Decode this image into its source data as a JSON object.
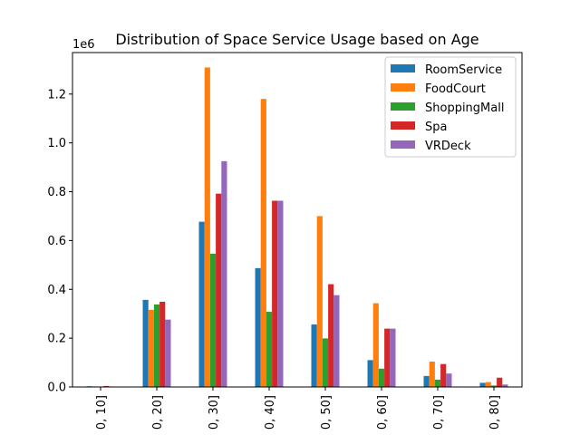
{
  "chart_data": {
    "type": "bar",
    "title": "Distribution of Space Service Usage based on Age",
    "xlabel": "",
    "ylabel": "",
    "y_offset_label": "1e6",
    "ylim": [
      0,
      1.37
    ],
    "yticks": [
      "0.0",
      "0.2",
      "0.4",
      "0.6",
      "0.8",
      "1.0",
      "1.2"
    ],
    "ytick_values": [
      0,
      0.2,
      0.4,
      0.6,
      0.8,
      1.0,
      1.2
    ],
    "categories": [
      "0, 10]",
      "0, 20]",
      "0, 30]",
      "0, 40]",
      "0, 50]",
      "0, 60]",
      "0, 70]",
      "0, 80]"
    ],
    "legend_position": "top-right",
    "grid": false,
    "series": [
      {
        "name": "RoomService",
        "color": "#1f77b4",
        "values": [
          0.003,
          0.357,
          0.677,
          0.487,
          0.256,
          0.11,
          0.045,
          0.017
        ]
      },
      {
        "name": "FoodCourt",
        "color": "#ff7f0e",
        "values": [
          0.002,
          0.316,
          1.309,
          1.18,
          0.7,
          0.343,
          0.104,
          0.02
        ]
      },
      {
        "name": "ShoppingMall",
        "color": "#2ca02c",
        "values": [
          0.001,
          0.338,
          0.546,
          0.308,
          0.199,
          0.075,
          0.03,
          0.006
        ]
      },
      {
        "name": "Spa",
        "color": "#d62728",
        "values": [
          0.004,
          0.349,
          0.792,
          0.763,
          0.421,
          0.239,
          0.094,
          0.038
        ]
      },
      {
        "name": "VRDeck",
        "color": "#9467bd",
        "values": [
          0.002,
          0.276,
          0.925,
          0.763,
          0.376,
          0.239,
          0.055,
          0.01
        ]
      }
    ]
  }
}
